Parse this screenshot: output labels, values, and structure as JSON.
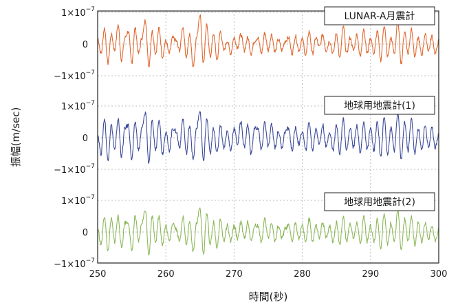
{
  "chart_data": {
    "type": "line",
    "xlabel": "時間(秒)",
    "ylabel": "振幅(m/sec)",
    "xlim": [
      250,
      300
    ],
    "x_ticks": [
      "250",
      "260",
      "270",
      "280",
      "290",
      "300"
    ],
    "ylim": [
      -1e-07,
      1e-07
    ],
    "y_ticks": [
      {
        "value": 1e-07,
        "label": "1×10",
        "exp": "−7"
      },
      {
        "value": 0,
        "label": "0",
        "exp": ""
      },
      {
        "value": -1e-07,
        "label": "−1×10",
        "exp": "−7"
      }
    ],
    "grid": true,
    "series": [
      {
        "name": "LUNAR-A月震計",
        "color": "#e0682f",
        "x": [
          250,
          250.5,
          251,
          251.5,
          252,
          252.5,
          253,
          253.5,
          254,
          254.5,
          255,
          255.5,
          256,
          256.5,
          257,
          257.5,
          258,
          258.5,
          259,
          259.5,
          260,
          260.5,
          261,
          261.5,
          262,
          262.5,
          263,
          263.5,
          264,
          264.5,
          265,
          265.5,
          266,
          266.5,
          267,
          267.5,
          268,
          268.5,
          269,
          269.5,
          270,
          270.5,
          271,
          271.5,
          272,
          272.5,
          273,
          273.5,
          274,
          274.5,
          275,
          275.5,
          276,
          276.5,
          277,
          277.5,
          278,
          278.5,
          279,
          279.5,
          280,
          280.5,
          281,
          281.5,
          282,
          282.5,
          283,
          283.5,
          284,
          284.5,
          285,
          285.5,
          286,
          286.5,
          287,
          287.5,
          288,
          288.5,
          289,
          289.5,
          290,
          290.5,
          291,
          291.5,
          292,
          292.5,
          293,
          293.5,
          294,
          294.5,
          295,
          295.5,
          296,
          296.5,
          297,
          297.5,
          298,
          298.5,
          299,
          299.5,
          300
        ],
        "y": [
          2e-08,
          -3e-08,
          5e-08,
          -6e-08,
          3e-08,
          -2e-08,
          6e-08,
          -5e-08,
          2e-08,
          4e-08,
          -6e-08,
          5e-08,
          -3e-08,
          2e-08,
          7.5e-08,
          -7e-08,
          4e-08,
          -3e-08,
          5e-08,
          -4e-08,
          1e-08,
          -3e-08,
          2e-08,
          1e-08,
          -2e-08,
          5.5e-08,
          -4e-08,
          3e-08,
          -7e-08,
          2e-08,
          9.5e-08,
          -6e-08,
          6e-08,
          -4e-08,
          3e-08,
          -5e-08,
          4e-08,
          -2e-08,
          1e-08,
          -3e-08,
          2e-08,
          -1e-08,
          3e-08,
          -2e-08,
          2e-08,
          -3e-08,
          1e-08,
          2e-08,
          -3e-08,
          3.5e-08,
          -2e-08,
          3e-08,
          -2.5e-08,
          1.5e-08,
          -2e-08,
          1e-08,
          2e-08,
          -3e-08,
          2.5e-08,
          -2e-08,
          1.5e-08,
          -3.5e-08,
          4e-08,
          -3e-08,
          2e-08,
          -1e-08,
          3e-08,
          -2e-08,
          1e-08,
          -3e-08,
          3.5e-08,
          -4.5e-08,
          5.5e-08,
          -3e-08,
          2e-08,
          -2e-08,
          3e-08,
          -4e-08,
          5e-08,
          -3e-08,
          2e-08,
          -3e-08,
          4e-08,
          -5e-08,
          6e-08,
          -4e-08,
          2e-08,
          -3e-08,
          7.5e-08,
          -6e-08,
          4e-08,
          -3e-08,
          5e-08,
          -4e-08,
          2e-08,
          -3.5e-08,
          3e-08,
          -2e-08,
          2.5e-08,
          -3e-08,
          1e-08
        ]
      },
      {
        "name": "地球用地震計(1)",
        "color": "#3b4a99",
        "x": [
          250,
          250.5,
          251,
          251.5,
          252,
          252.5,
          253,
          253.5,
          254,
          254.5,
          255,
          255.5,
          256,
          256.5,
          257,
          257.5,
          258,
          258.5,
          259,
          259.5,
          260,
          260.5,
          261,
          261.5,
          262,
          262.5,
          263,
          263.5,
          264,
          264.5,
          265,
          265.5,
          266,
          266.5,
          267,
          267.5,
          268,
          268.5,
          269,
          269.5,
          270,
          270.5,
          271,
          271.5,
          272,
          272.5,
          273,
          273.5,
          274,
          274.5,
          275,
          275.5,
          276,
          276.5,
          277,
          277.5,
          278,
          278.5,
          279,
          279.5,
          280,
          280.5,
          281,
          281.5,
          282,
          282.5,
          283,
          283.5,
          284,
          284.5,
          285,
          285.5,
          286,
          286.5,
          287,
          287.5,
          288,
          288.5,
          289,
          289.5,
          290,
          290.5,
          291,
          291.5,
          292,
          292.5,
          293,
          293.5,
          294,
          294.5,
          295,
          295.5,
          296,
          296.5,
          297,
          297.5,
          298,
          298.5,
          299,
          299.5,
          300
        ],
        "y": [
          1e-08,
          -5e-08,
          6e-08,
          -7e-08,
          4e-08,
          -4e-08,
          6e-08,
          -6e-08,
          3e-08,
          4e-08,
          -7e-08,
          5e-08,
          -4e-08,
          3e-08,
          8e-08,
          -8e-08,
          5e-08,
          -4e-08,
          6e-08,
          -5e-08,
          2e-08,
          -4e-08,
          3e-08,
          2e-08,
          -3e-08,
          6e-08,
          -5e-08,
          4e-08,
          -7e-08,
          3e-08,
          8.5e-08,
          -7.5e-08,
          6e-08,
          -5e-08,
          3e-08,
          -5e-08,
          4e-08,
          -3e-08,
          2e-08,
          -4e-08,
          3e-08,
          -2e-08,
          5e-08,
          -3e-08,
          4e-08,
          -5e-08,
          3e-08,
          3e-08,
          -4e-08,
          5e-08,
          -3e-08,
          4e-08,
          -3e-08,
          2e-08,
          -3e-08,
          2e-08,
          3e-08,
          -4e-08,
          3e-08,
          -2e-08,
          2e-08,
          -4e-08,
          5e-08,
          -4e-08,
          3e-08,
          -2e-08,
          4e-08,
          -3e-08,
          2e-08,
          -4e-08,
          4e-08,
          -5e-08,
          6e-08,
          -4e-08,
          3e-08,
          -3e-08,
          4e-08,
          -5e-08,
          5e-08,
          -4e-08,
          3e-08,
          -4e-08,
          5e-08,
          -6e-08,
          6.5e-08,
          -5e-08,
          3e-08,
          -4e-08,
          8e-08,
          -7e-08,
          5e-08,
          -4e-08,
          6e-08,
          -5e-08,
          3e-08,
          -4e-08,
          4e-08,
          -3e-08,
          3e-08,
          -3e-08,
          1e-08
        ]
      },
      {
        "name": "地球用地震計(2)",
        "color": "#8cb85a",
        "x": [
          250,
          250.5,
          251,
          251.5,
          252,
          252.5,
          253,
          253.5,
          254,
          254.5,
          255,
          255.5,
          256,
          256.5,
          257,
          257.5,
          258,
          258.5,
          259,
          259.5,
          260,
          260.5,
          261,
          261.5,
          262,
          262.5,
          263,
          263.5,
          264,
          264.5,
          265,
          265.5,
          266,
          266.5,
          267,
          267.5,
          268,
          268.5,
          269,
          269.5,
          270,
          270.5,
          271,
          271.5,
          272,
          272.5,
          273,
          273.5,
          274,
          274.5,
          275,
          275.5,
          276,
          276.5,
          277,
          277.5,
          278,
          278.5,
          279,
          279.5,
          280,
          280.5,
          281,
          281.5,
          282,
          282.5,
          283,
          283.5,
          284,
          284.5,
          285,
          285.5,
          286,
          286.5,
          287,
          287.5,
          288,
          288.5,
          289,
          289.5,
          290,
          290.5,
          291,
          291.5,
          292,
          292.5,
          293,
          293.5,
          294,
          294.5,
          295,
          295.5,
          296,
          296.5,
          297,
          297.5,
          298,
          298.5,
          299,
          299.5,
          300
        ],
        "y": [
          1e-08,
          -4e-08,
          5e-08,
          -6e-08,
          4e-08,
          -3e-08,
          5e-08,
          -5e-08,
          3e-08,
          3e-08,
          -6e-08,
          5e-08,
          -3e-08,
          3e-08,
          7e-08,
          -7e-08,
          5e-08,
          -3e-08,
          5e-08,
          -4e-08,
          2e-08,
          -3e-08,
          3e-08,
          1e-08,
          -3e-08,
          5e-08,
          -4e-08,
          3e-08,
          -6e-08,
          3e-08,
          7.5e-08,
          -7e-08,
          6e-08,
          -4e-08,
          3e-08,
          -5e-08,
          4e-08,
          -3e-08,
          2e-08,
          -3e-08,
          2e-08,
          -2e-08,
          3e-08,
          -2e-08,
          3e-08,
          -3e-08,
          2e-08,
          2e-08,
          -3e-08,
          4e-08,
          -2e-08,
          3e-08,
          -3e-08,
          2e-08,
          -2e-08,
          1e-08,
          2e-08,
          -3e-08,
          3e-08,
          -2e-08,
          2e-08,
          -3e-08,
          4e-08,
          -3e-08,
          2e-08,
          -2e-08,
          3e-08,
          -2e-08,
          2e-08,
          -3e-08,
          3e-08,
          -4e-08,
          5e-08,
          -3e-08,
          3e-08,
          -2e-08,
          3e-08,
          -4e-08,
          5e-08,
          -3e-08,
          2e-08,
          -3e-08,
          4e-08,
          -5e-08,
          6e-08,
          -4e-08,
          3e-08,
          -3e-08,
          7e-08,
          -6e-08,
          4e-08,
          -3e-08,
          5e-08,
          -4e-08,
          3e-08,
          -3e-08,
          3e-08,
          -2e-08,
          2e-08,
          -3e-08,
          1e-08
        ]
      }
    ]
  }
}
